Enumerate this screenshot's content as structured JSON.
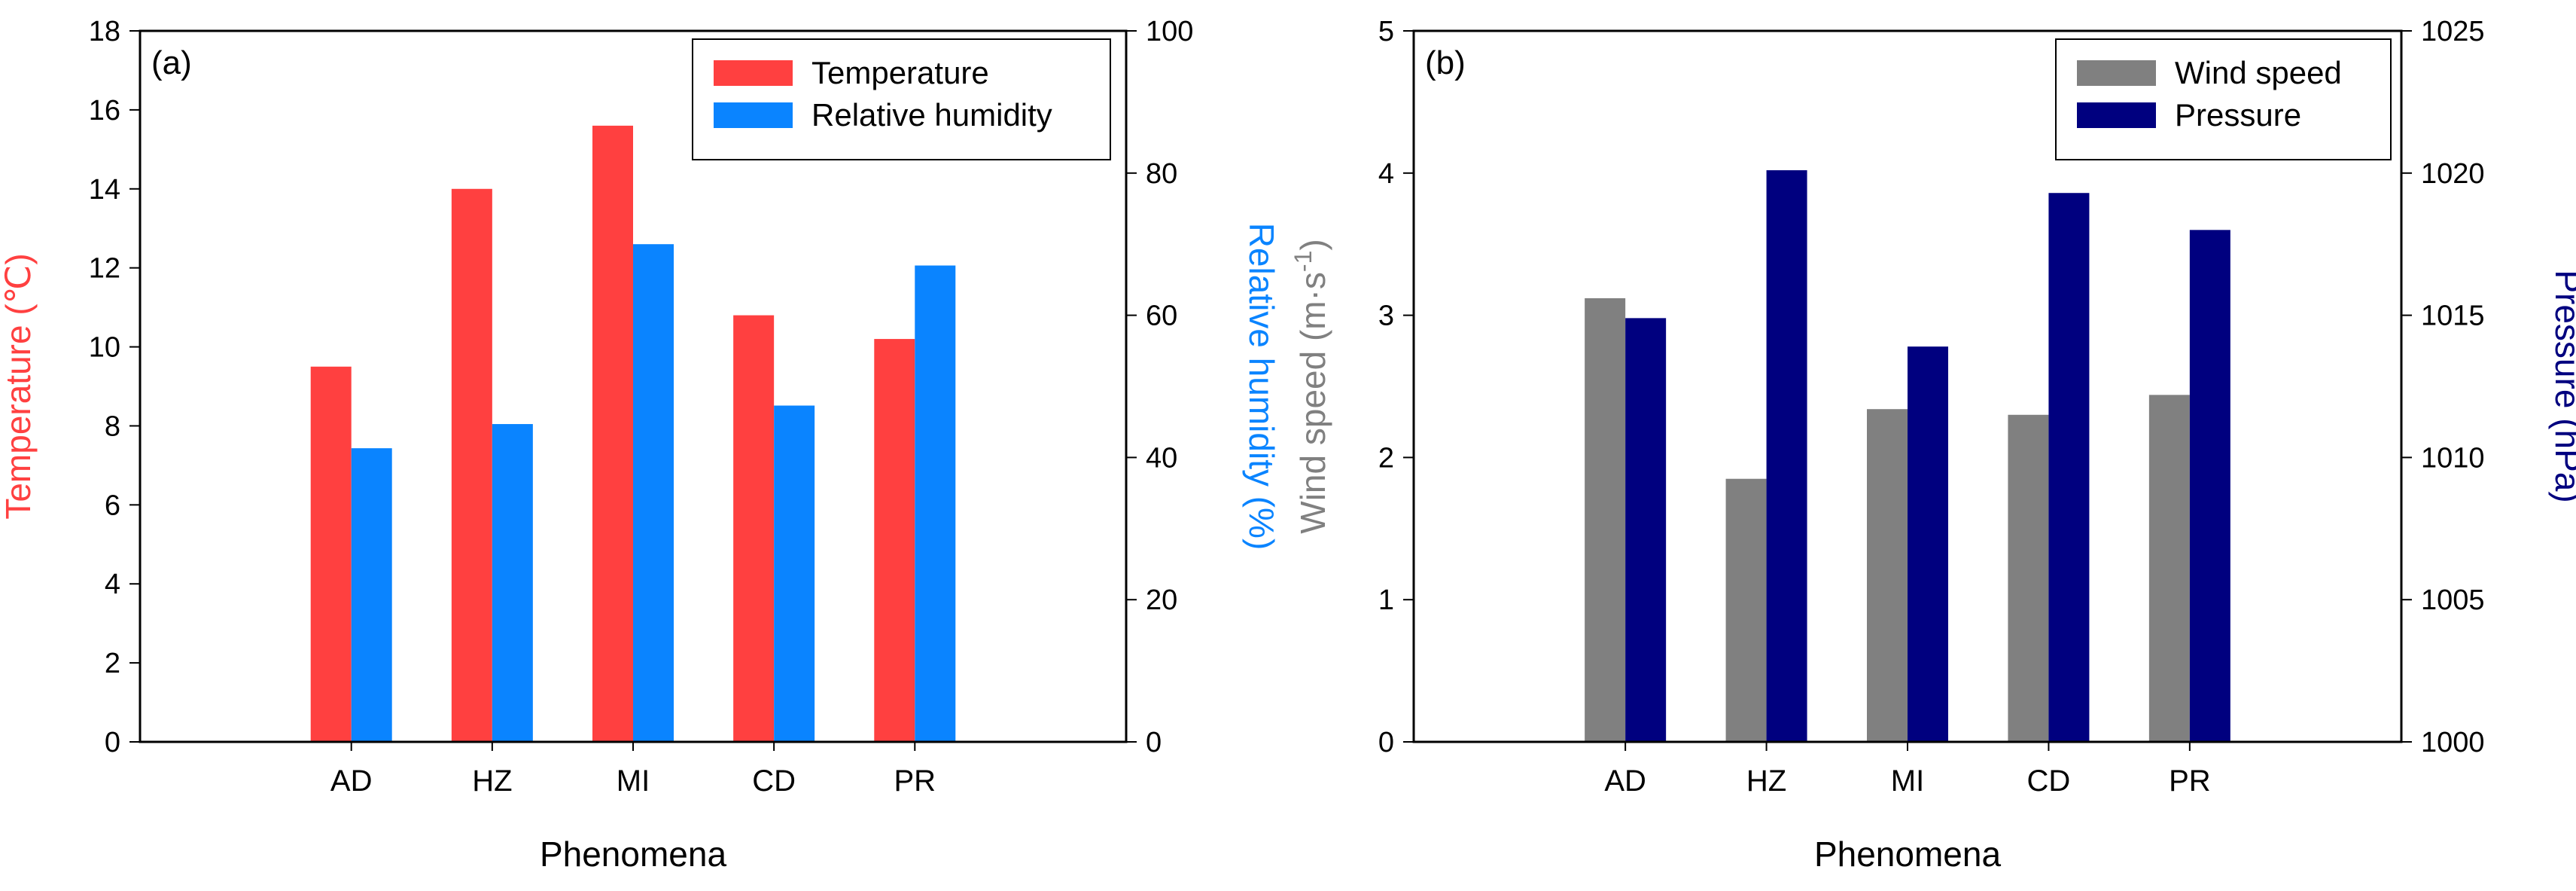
{
  "chart_data": [
    {
      "type": "bar",
      "panel_label": "(a)",
      "categories": [
        "AD",
        "HZ",
        "MI",
        "CD",
        "PR"
      ],
      "xlabel": "Phenomena",
      "left_axis": {
        "label": "Temperature (℃)",
        "ylim": [
          0,
          18
        ],
        "ticks": [
          "0",
          "2",
          "4",
          "6",
          "8",
          "10",
          "12",
          "14",
          "16",
          "18"
        ],
        "color": "#ff4040"
      },
      "right_axis": {
        "label": "Relative humidity (%)",
        "ylim": [
          0,
          100
        ],
        "ticks": [
          "0",
          "20",
          "40",
          "60",
          "80",
          "100"
        ],
        "color": "#0a84ff"
      },
      "series": [
        {
          "name": "Temperature",
          "axis": "left",
          "color": "#ff4040",
          "values": [
            9.5,
            14.0,
            15.6,
            10.8,
            10.2
          ]
        },
        {
          "name": "Relative humidity",
          "axis": "right",
          "color": "#0a84ff",
          "values": [
            41.3,
            44.7,
            70.0,
            47.3,
            67.0
          ]
        }
      ],
      "legend": "top-right"
    },
    {
      "type": "bar",
      "panel_label": "(b)",
      "categories": [
        "AD",
        "HZ",
        "MI",
        "CD",
        "PR"
      ],
      "xlabel": "Phenomena",
      "left_axis": {
        "label": "Wind speed (m·s",
        "label_sup": "-1",
        "label_tail": ")",
        "ylim": [
          0,
          5
        ],
        "ticks": [
          "0",
          "1",
          "2",
          "3",
          "4",
          "5"
        ],
        "color": "#808080"
      },
      "right_axis": {
        "label": "Pressure (hPa)",
        "ylim": [
          1000,
          1025
        ],
        "ticks": [
          "1000",
          "1005",
          "1010",
          "1015",
          "1020",
          "1025"
        ],
        "color": "#00007f"
      },
      "series": [
        {
          "name": "Wind speed",
          "axis": "left",
          "color": "#808080",
          "values": [
            3.12,
            1.85,
            2.34,
            2.3,
            2.44
          ]
        },
        {
          "name": "Pressure",
          "axis": "right",
          "color": "#00007f",
          "values": [
            1014.9,
            1020.1,
            1013.9,
            1019.3,
            1018.0
          ]
        }
      ],
      "legend": "top-right"
    }
  ]
}
